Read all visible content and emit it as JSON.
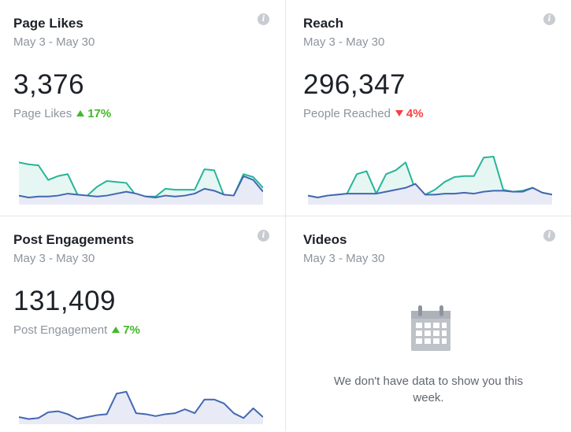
{
  "cards": [
    {
      "title": "Page Likes",
      "date_range": "May 3 - May 30",
      "value": "3,376",
      "metric_label": "Page Likes",
      "change": "17%",
      "change_direction": "up",
      "chart": {
        "current": [
          40,
          38,
          37,
          22,
          26,
          28,
          7,
          6,
          15,
          21,
          20,
          19,
          6,
          5,
          5,
          13,
          12,
          12,
          12,
          33,
          32,
          6,
          6,
          28,
          25,
          14
        ],
        "previous": [
          6,
          4,
          5,
          5,
          6,
          8,
          7,
          6,
          5,
          6,
          8,
          10,
          8,
          5,
          4,
          6,
          5,
          6,
          8,
          13,
          11,
          7,
          6,
          26,
          22,
          10
        ]
      }
    },
    {
      "title": "Reach",
      "date_range": "May 3 - May 30",
      "value": "296,347",
      "metric_label": "People Reached",
      "change": "4%",
      "change_direction": "down",
      "chart": {
        "current": [
          6,
          4,
          6,
          7,
          8,
          28,
          31,
          8,
          28,
          32,
          40,
          12,
          7,
          12,
          20,
          25,
          26,
          26,
          45,
          46,
          12,
          10,
          11,
          14,
          9,
          7
        ],
        "previous": [
          6,
          4,
          6,
          7,
          8,
          8,
          8,
          8,
          10,
          12,
          14,
          18,
          7,
          7,
          8,
          8,
          9,
          8,
          10,
          11,
          11,
          10,
          10,
          14,
          9,
          7
        ]
      }
    },
    {
      "title": "Post Engagements",
      "date_range": "May 3 - May 30",
      "value": "131,409",
      "metric_label": "Post Engagement",
      "change": "7%",
      "change_direction": "up",
      "chart": {
        "current": [
          4,
          2,
          3,
          9,
          10,
          7,
          2,
          4,
          6,
          7,
          28,
          30,
          8,
          7,
          5,
          7,
          8,
          12,
          8,
          22,
          22,
          18,
          8,
          3,
          13,
          4
        ]
      }
    },
    {
      "title": "Videos",
      "date_range": "May 3 - May 30",
      "empty_message": "We don't have data to show you this week.",
      "icon": "calendar-icon"
    }
  ],
  "colors": {
    "current_line": "#26b598",
    "current_fill": "#e6f7f3",
    "previous_line": "#4267b2",
    "previous_fill": "#e8eaf6",
    "up": "#42b72a",
    "down": "#fa3e3e"
  }
}
